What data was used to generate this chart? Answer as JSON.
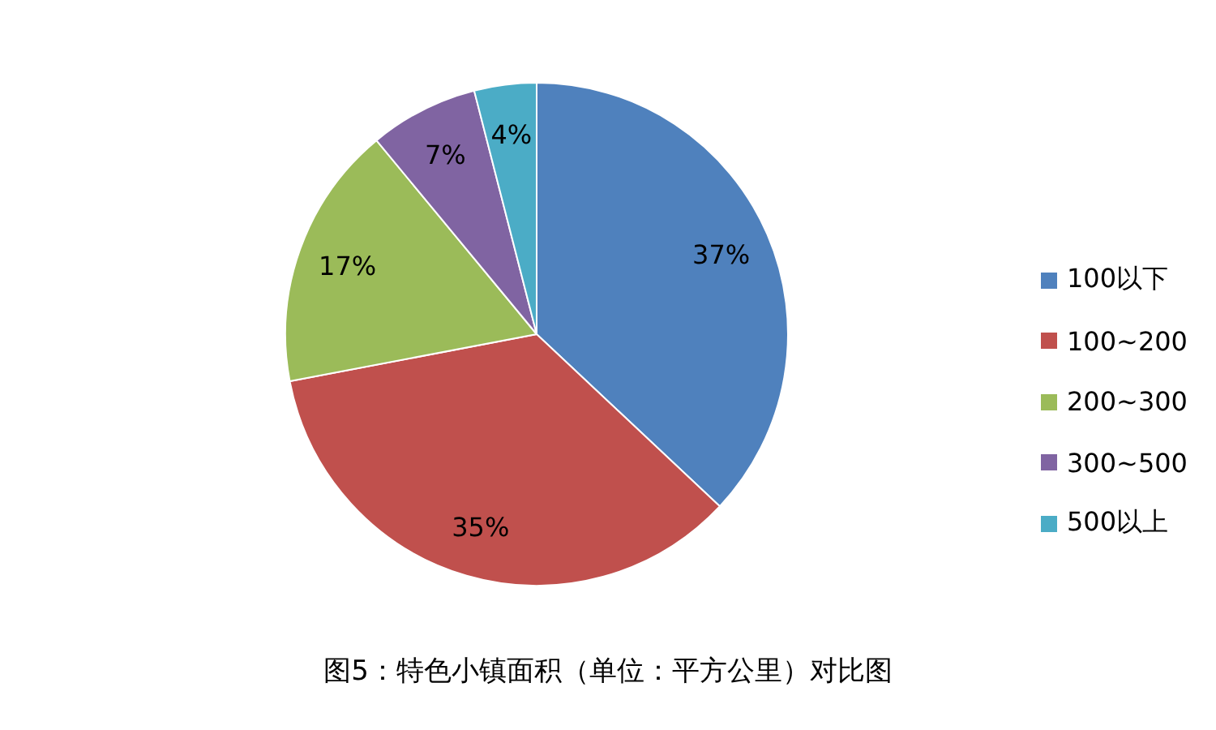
{
  "chart_data": {
    "type": "pie",
    "title": "图5：特色小镇面积（单位：平方公里）对比图",
    "categories": [
      "100以下",
      "100~200",
      "200~300",
      "300~500",
      "500以上"
    ],
    "values": [
      37,
      35,
      17,
      7,
      4
    ],
    "colors": [
      "#4f81bd",
      "#c0504d",
      "#9bbb59",
      "#8064a2",
      "#4bacc6"
    ],
    "value_labels": [
      "37%",
      "35%",
      "17%",
      "7%",
      "4%"
    ],
    "legend": "right"
  }
}
